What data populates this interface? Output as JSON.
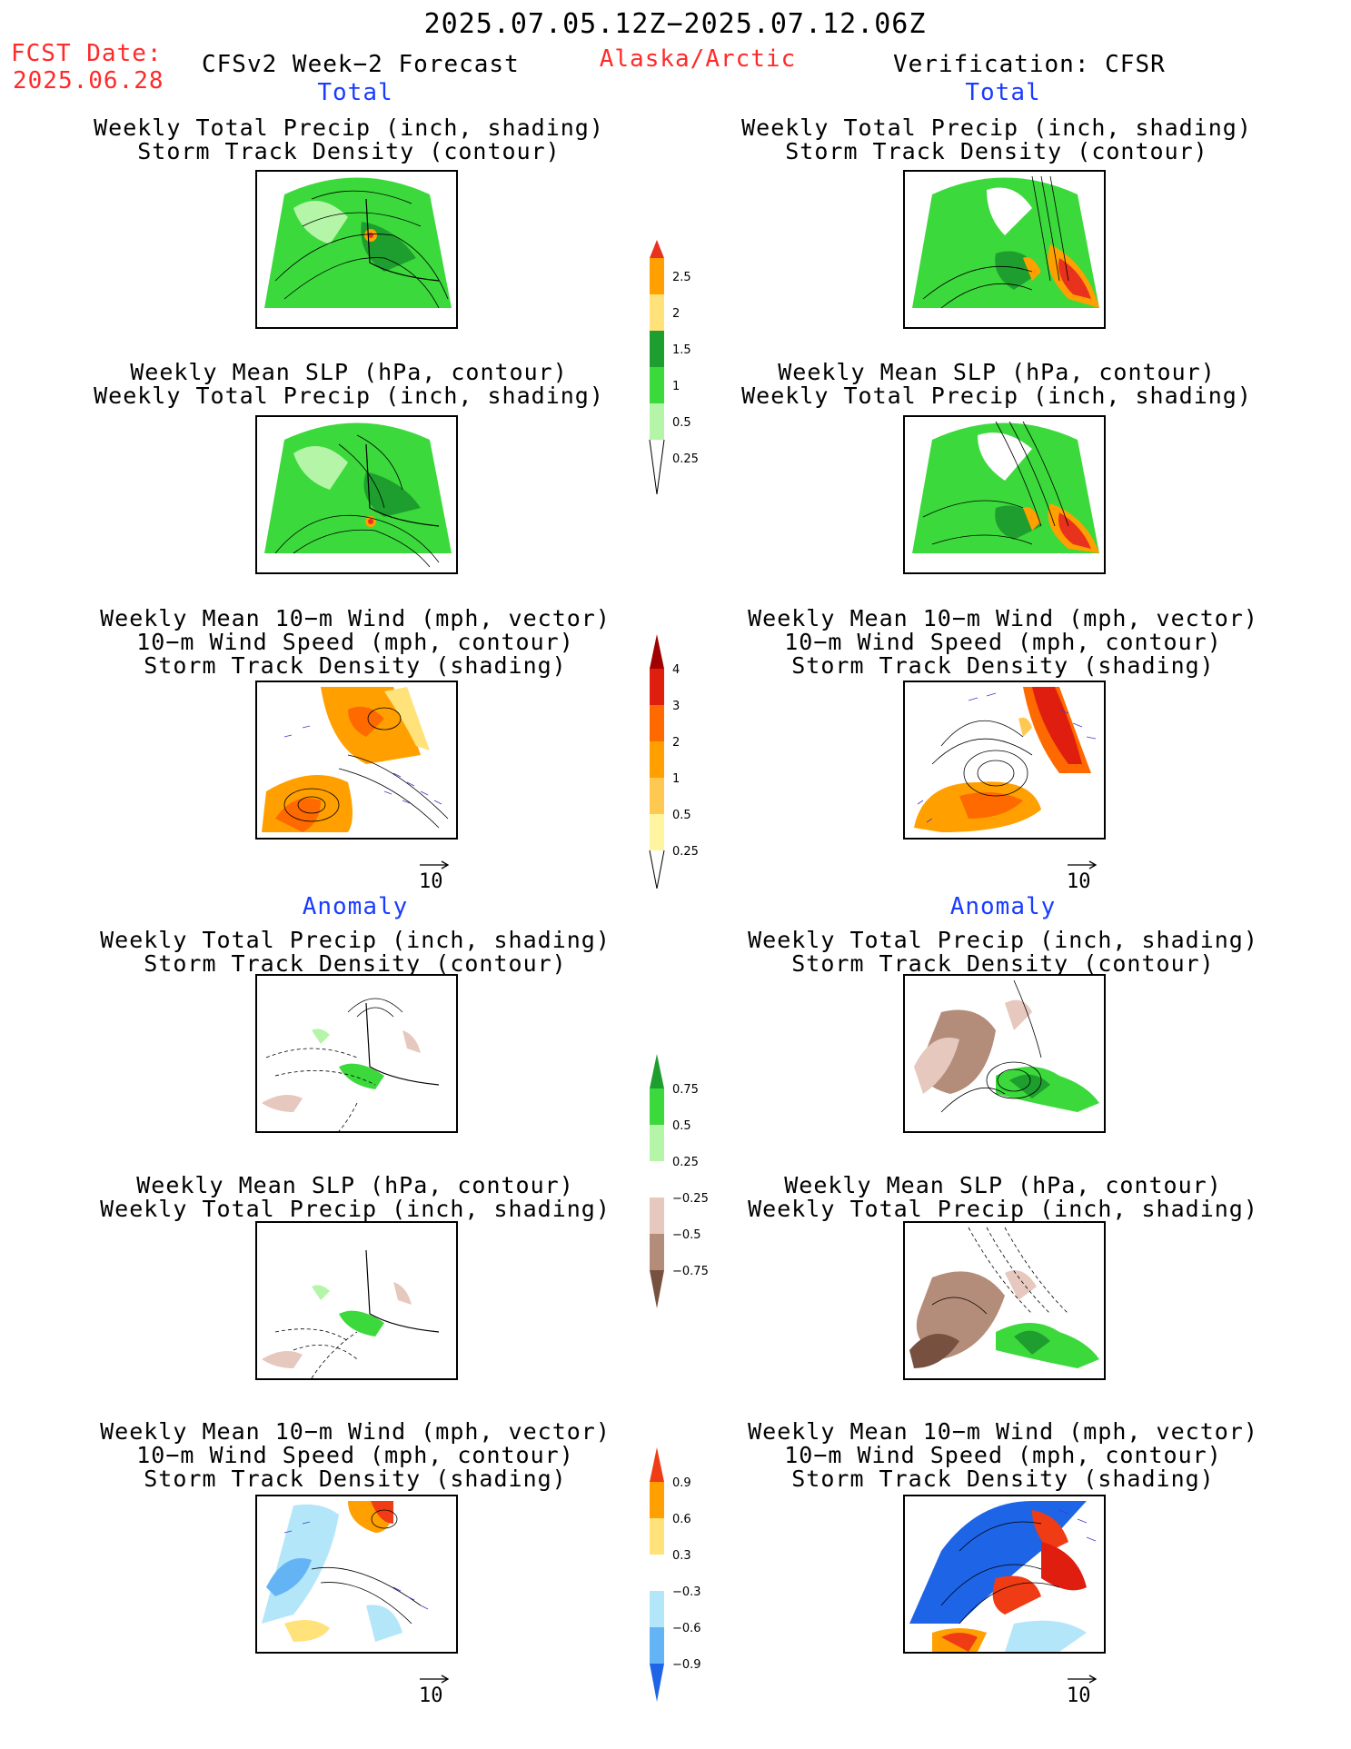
{
  "header": {
    "period": "2025.07.05.12Z−2025.07.12.06Z",
    "fcst_label": "FCST Date:",
    "fcst_date": "2025.06.28",
    "model": "CFSv2 Week−2 Forecast",
    "region": "Alaska/Arctic",
    "verification": "Verification: CFSR"
  },
  "sections": {
    "total_left": "Total",
    "total_right": "Total",
    "anomaly_left": "Anomaly",
    "anomaly_right": "Anomaly"
  },
  "panel_titles": {
    "precip_storm": [
      "Weekly Total Precip (inch, shading)",
      "Storm Track Density (contour)"
    ],
    "slp_precip": [
      "Weekly Mean SLP (hPa, contour)",
      "Weekly Total Precip (inch, shading)"
    ],
    "wind_storm": [
      "Weekly Mean 10−m Wind (mph, vector)",
      "10−m Wind Speed (mph, contour)",
      "Storm Track Density (shading)"
    ]
  },
  "vector_ref": "10",
  "colorbars": {
    "precip_total": {
      "labels": [
        "2.5",
        "2",
        "1.5",
        "1",
        "0.5",
        "0.25"
      ],
      "colors": [
        "#e8321e",
        "#ffa000",
        "#ffe27a",
        "#1e9e2e",
        "#3cd93c",
        "#b4f5a8"
      ]
    },
    "storm_total": {
      "labels": [
        "4",
        "3",
        "2",
        "1",
        "0.5",
        "0.25"
      ],
      "colors": [
        "#a00000",
        "#e01e10",
        "#ff6a00",
        "#ffa000",
        "#ffc850",
        "#fff5a0"
      ]
    },
    "precip_anom": {
      "labels": [
        "0.75",
        "0.5",
        "0.25",
        "−0.25",
        "−0.5",
        "−0.75"
      ],
      "colors": [
        "#1e9e2e",
        "#3cd93c",
        "#b4f5a8",
        "#ffffff",
        "#e6c8be",
        "#b48c7a",
        "#785040"
      ]
    },
    "storm_anom": {
      "labels": [
        "0.9",
        "0.6",
        "0.3",
        "−0.3",
        "−0.6",
        "−0.9"
      ],
      "colors": [
        "#f03c14",
        "#ffa000",
        "#ffe27a",
        "#ffffff",
        "#b4e6fa",
        "#64b4f5",
        "#1e64e6"
      ]
    }
  }
}
